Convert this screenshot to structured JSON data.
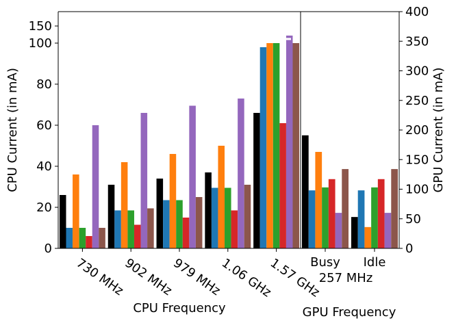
{
  "chart_data": [
    {
      "type": "bar",
      "ylabel": "CPU Current (in mA)",
      "xlabel": "CPU Frequency",
      "categories": [
        "730 MHz",
        "902 MHz",
        "979 MHz",
        "1.06 GHz",
        "1.57 GHz"
      ],
      "ylim": [
        0,
        192
      ],
      "ybreak": 100,
      "yticks": [
        0,
        20,
        40,
        60,
        80,
        100,
        150
      ],
      "series": [
        {
          "color": "#000000",
          "values": [
            26,
            31,
            34,
            37,
            66
          ]
        },
        {
          "color": "#1f77b4",
          "values": [
            10,
            18.5,
            23.5,
            29.5,
            98
          ]
        },
        {
          "color": "#ff7f0e",
          "values": [
            36,
            42,
            46,
            50,
            100
          ]
        },
        {
          "color": "#2ca02c",
          "values": [
            10,
            18.5,
            23.5,
            29.5,
            100
          ]
        },
        {
          "color": "#d62728",
          "values": [
            6,
            11.5,
            15,
            18.5,
            61
          ]
        },
        {
          "color": "#9467bd",
          "values": [
            60,
            66,
            69.5,
            73,
            122
          ]
        },
        {
          "color": "#8c564b",
          "values": [
            10,
            19.5,
            25,
            31,
            100
          ]
        }
      ]
    },
    {
      "type": "bar",
      "y2label": "GPU Current (in mA)",
      "xlabel": "GPU Frequency",
      "group_label": "257 MHz",
      "categories": [
        "Busy",
        "Idle"
      ],
      "y2lim": [
        0,
        400
      ],
      "y2ticks": [
        0,
        50,
        100,
        150,
        200,
        250,
        300,
        350,
        400
      ],
      "series": [
        {
          "color": "#000000",
          "axis": "y2",
          "values": [
            191,
            53
          ]
        },
        {
          "color": "#1f77b4",
          "axis": "y2",
          "values": [
            98,
            98
          ]
        },
        {
          "color": "#ff7f0e",
          "axis": "y2",
          "values": [
            163,
            36
          ]
        },
        {
          "color": "#2ca02c",
          "axis": "y2",
          "values": [
            103,
            103
          ]
        },
        {
          "color": "#d62728",
          "axis": "y2",
          "values": [
            117,
            117
          ]
        },
        {
          "color": "#9467bd",
          "axis": "y2",
          "values": [
            60,
            60
          ]
        },
        {
          "color": "#8c564b",
          "axis": "y2",
          "values": [
            134,
            134
          ]
        }
      ]
    }
  ]
}
